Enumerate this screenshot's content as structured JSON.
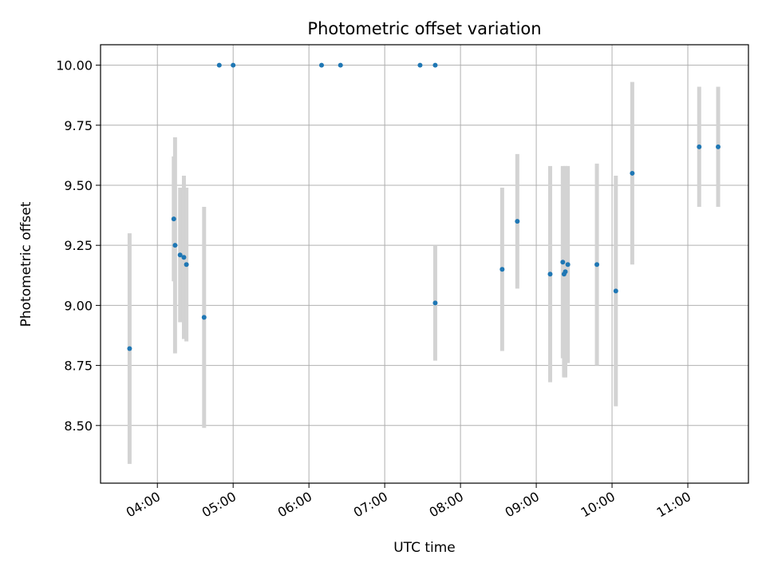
{
  "chart_data": {
    "type": "scatter",
    "title": "Photometric offset variation",
    "xlabel": "UTC time",
    "ylabel": "Photometric offset",
    "x_tick_labels": [
      "04:00",
      "05:00",
      "06:00",
      "07:00",
      "08:00",
      "09:00",
      "10:00",
      "11:00"
    ],
    "x_ticks": [
      "04:00",
      "05:00",
      "06:00",
      "07:00",
      "08:00",
      "09:00",
      "10:00",
      "11:00"
    ],
    "y_tick_labels": [
      "8.50",
      "8.75",
      "9.00",
      "9.25",
      "9.50",
      "9.75",
      "10.00"
    ],
    "y_ticks": [
      8.5,
      8.75,
      9.0,
      9.25,
      9.5,
      9.75,
      10.0
    ],
    "xlim": [
      "03:15",
      "11:48"
    ],
    "ylim": [
      8.26,
      10.085
    ],
    "grid": true,
    "point_color": "#1f77b4",
    "errorbar_color": "#d3d3d3",
    "points": [
      {
        "x": "03:38",
        "y": 8.82,
        "err": 0.48
      },
      {
        "x": "04:13",
        "y": 9.36,
        "err": 0.26
      },
      {
        "x": "04:14",
        "y": 9.25,
        "err": 0.45
      },
      {
        "x": "04:18",
        "y": 9.21,
        "err": 0.28
      },
      {
        "x": "04:21",
        "y": 9.2,
        "err": 0.34
      },
      {
        "x": "04:23",
        "y": 9.17,
        "err": 0.32
      },
      {
        "x": "04:37",
        "y": 8.95,
        "err": 0.46
      },
      {
        "x": "04:49",
        "y": 10.0,
        "err": null
      },
      {
        "x": "05:00",
        "y": 10.0,
        "err": null
      },
      {
        "x": "06:10",
        "y": 10.0,
        "err": null
      },
      {
        "x": "06:25",
        "y": 10.0,
        "err": null
      },
      {
        "x": "07:28",
        "y": 10.0,
        "err": null
      },
      {
        "x": "07:40",
        "y": 10.0,
        "err": null
      },
      {
        "x": "07:40",
        "y": 9.01,
        "err": 0.24
      },
      {
        "x": "08:33",
        "y": 9.15,
        "err": 0.34
      },
      {
        "x": "08:45",
        "y": 9.35,
        "err": 0.28
      },
      {
        "x": "09:11",
        "y": 9.13,
        "err": 0.45
      },
      {
        "x": "09:21",
        "y": 9.18,
        "err": 0.4
      },
      {
        "x": "09:22",
        "y": 9.13,
        "err": 0.43
      },
      {
        "x": "09:23",
        "y": 9.14,
        "err": 0.44
      },
      {
        "x": "09:25",
        "y": 9.17,
        "err": 0.41
      },
      {
        "x": "09:48",
        "y": 9.17,
        "err": 0.42
      },
      {
        "x": "10:03",
        "y": 9.06,
        "err": 0.48
      },
      {
        "x": "10:16",
        "y": 9.55,
        "err": 0.38
      },
      {
        "x": "11:09",
        "y": 9.66,
        "err": 0.25
      },
      {
        "x": "11:24",
        "y": 9.66,
        "err": 0.25
      }
    ]
  }
}
